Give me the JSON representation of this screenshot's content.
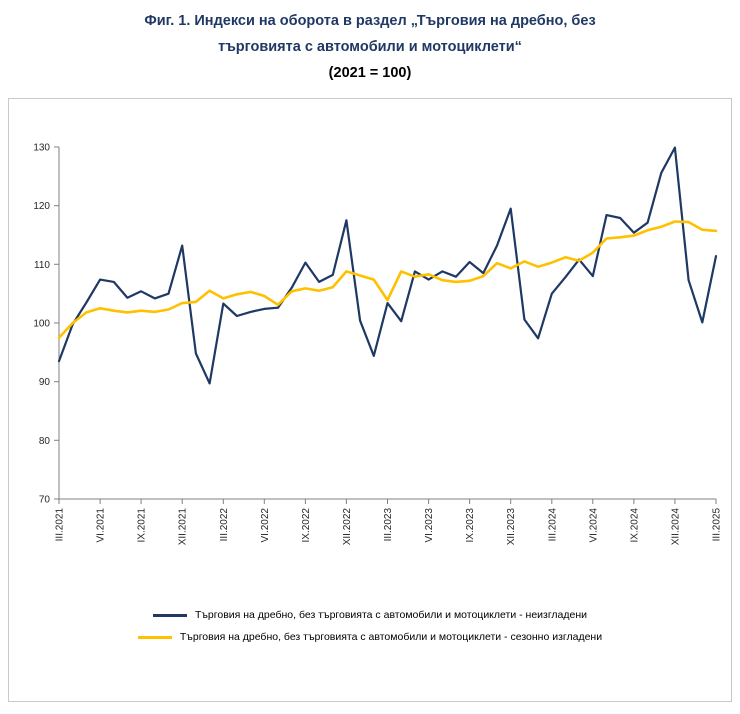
{
  "title": {
    "line1": "Фиг. 1. Индекси на оборота в раздел „Търговия на дребно, без",
    "line2": "търговията с автомобили и мотоциклети“",
    "line3": "(2021 = 100)"
  },
  "colors": {
    "unadjusted": "#1F3864",
    "seasonal": "#FFC000",
    "axis": "#808080",
    "tick_label": "#262626",
    "title": "#1F3864",
    "chart_border": "#C9C9C9"
  },
  "legend": [
    {
      "label": "Търговия на дребно, без търговията с автомобили и мотоциклети - неизгладени",
      "color": "#1F3864"
    },
    {
      "label": "Търговия на дребно, без търговията с автомобили и мотоциклети - сезонно изгладени",
      "color": "#FFC000"
    }
  ],
  "chart_data": {
    "type": "line",
    "x_frequency": "monthly",
    "x_range": [
      "III.2021",
      "III.2025"
    ],
    "x_tick_labels": [
      "III.2021",
      "VI.2021",
      "IX.2021",
      "XII.2021",
      "III.2022",
      "VI.2022",
      "IX.2022",
      "XII.2022",
      "III.2023",
      "VI.2023",
      "IX.2023",
      "XII.2023",
      "III.2024",
      "VI.2024",
      "IX.2024",
      "XII.2024",
      "III.2025"
    ],
    "label_every": 3,
    "label_start_index": 0,
    "ylim": [
      70,
      130
    ],
    "yticks": [
      70,
      80,
      90,
      100,
      110,
      120,
      130
    ],
    "grid": false,
    "legend_position": "bottom",
    "series": [
      {
        "name": "Търговия на дребно, без търговията с автомобили и мотоциклети - неизгладени",
        "color": "#1F3864",
        "stroke_width": 2.2,
        "values": [
          93.5,
          99.8,
          103.5,
          107.4,
          107.0,
          104.3,
          105.4,
          104.2,
          105.0,
          113.2,
          94.8,
          89.7,
          103.3,
          101.2,
          101.9,
          102.4,
          102.6,
          106.0,
          110.3,
          107.0,
          108.2,
          117.5,
          100.4,
          94.4,
          103.4,
          100.3,
          108.8,
          107.4,
          108.8,
          107.9,
          110.4,
          108.5,
          113.2,
          119.5,
          100.6,
          97.4,
          105.0,
          107.8,
          110.8,
          108.0,
          118.4,
          117.9,
          115.4,
          117.1,
          125.6,
          129.9,
          107.3,
          100.1,
          111.4
        ]
      },
      {
        "name": "Търговия на дребно, без търговията с автомобили и мотоциклети - сезонно изгладени",
        "color": "#FFC000",
        "stroke_width": 2.6,
        "values": [
          97.5,
          100.0,
          101.8,
          102.5,
          102.1,
          101.8,
          102.1,
          101.9,
          102.3,
          103.4,
          103.6,
          105.5,
          104.2,
          104.9,
          105.3,
          104.6,
          103.1,
          105.4,
          105.9,
          105.5,
          106.1,
          108.8,
          108.1,
          107.4,
          103.9,
          108.8,
          107.9,
          108.3,
          107.3,
          107.0,
          107.2,
          108.0,
          110.2,
          109.3,
          110.5,
          109.6,
          110.3,
          111.2,
          110.6,
          112.0,
          114.4,
          114.6,
          114.9,
          115.8,
          116.4,
          117.3,
          117.2,
          115.9,
          115.7
        ]
      }
    ]
  }
}
